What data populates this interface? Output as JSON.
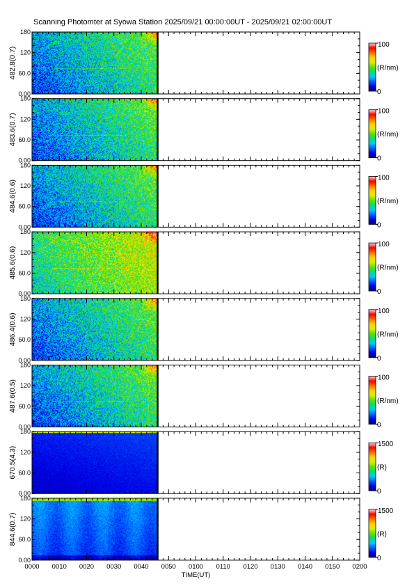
{
  "title": "Scanning Photomter at Syowa Station 2025/09/21 00:00:00UT - 2025/09/21 02:00:00UT",
  "chart_data": {
    "type": "heatmap",
    "xlabel": "TIME(UT)",
    "x_ticks": [
      "0000",
      "0010",
      "0020",
      "0030",
      "0040",
      "0050",
      "0100",
      "0110",
      "0120",
      "0130",
      "0140",
      "0150",
      "0200"
    ],
    "x_range_minutes": [
      0,
      120
    ],
    "data_end_minutes": 46,
    "y_ticks": [
      "0.00",
      "60.0",
      "120",
      "180"
    ],
    "y_range": [
      0,
      180
    ],
    "colormap": [
      "#00007a",
      "#0000e6",
      "#0060ff",
      "#00c8ff",
      "#00e070",
      "#60e000",
      "#d8f000",
      "#ffd000",
      "#ff7000",
      "#ff0000",
      "#ffd8d8"
    ],
    "panels": [
      {
        "label": "482.8(0.7)",
        "cb_max": "100",
        "cb_min": "0",
        "cb_unit": "(R/nm)",
        "scale_max": 100,
        "style": "blue-green"
      },
      {
        "label": "483.6(0.7)",
        "cb_max": "100",
        "cb_min": "0",
        "cb_unit": "(R/nm)",
        "scale_max": 100,
        "style": "blue-green"
      },
      {
        "label": "484.6(0.6)",
        "cb_max": "100",
        "cb_min": "0",
        "cb_unit": "(R/nm)",
        "scale_max": 100,
        "style": "blue-green"
      },
      {
        "label": "485.6(0.6)",
        "cb_max": "100",
        "cb_min": "0",
        "cb_unit": "(R/nm)",
        "scale_max": 100,
        "style": "green"
      },
      {
        "label": "486.4(0.6)",
        "cb_max": "100",
        "cb_min": "0",
        "cb_unit": "(R/nm)",
        "scale_max": 100,
        "style": "blue-green"
      },
      {
        "label": "487.6(0.5)",
        "cb_max": "100",
        "cb_min": "0",
        "cb_unit": "(R/nm)",
        "scale_max": 100,
        "style": "blue-green"
      },
      {
        "label": "670.5(4.3)",
        "cb_max": "1500",
        "cb_min": "0",
        "cb_unit": "(R)",
        "scale_max": 1500,
        "style": "dark-blue"
      },
      {
        "label": "844.6(0.7)",
        "cb_max": "1500",
        "cb_min": "0",
        "cb_unit": "(R)",
        "scale_max": 1500,
        "style": "blue"
      }
    ]
  }
}
